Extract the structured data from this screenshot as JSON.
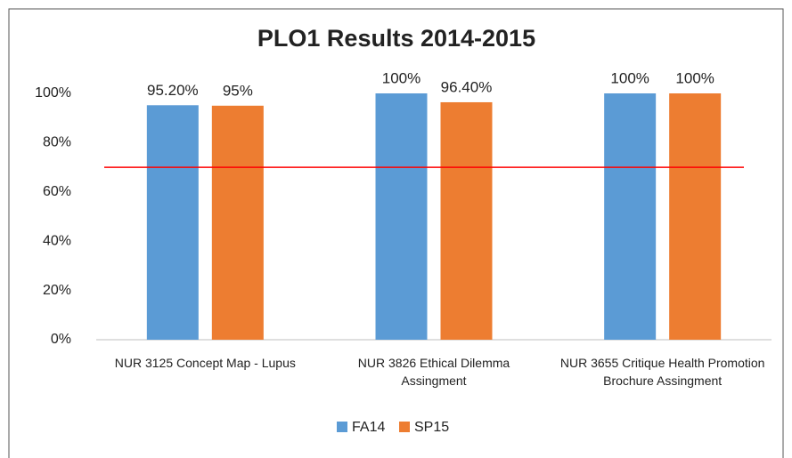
{
  "chart_data": {
    "type": "bar",
    "title": "PLO1 Results 2014-2015",
    "categories": [
      "NUR 3125 Concept Map - Lupus",
      "NUR 3826  Ethical Dilemma Assingment",
      "NUR 3655 Critique Health Promotion Brochure Assingment"
    ],
    "series": [
      {
        "name": "FA14",
        "color": "#5b9bd5",
        "values": [
          95.2,
          100,
          100
        ],
        "value_labels": [
          "95.20%",
          "100%",
          "100%"
        ]
      },
      {
        "name": "SP15",
        "color": "#ed7d31",
        "values": [
          95,
          96.4,
          100
        ],
        "value_labels": [
          "95%",
          "96.40%",
          "100%"
        ]
      }
    ],
    "ylim": [
      0,
      100
    ],
    "yticks": [
      {
        "value": 0,
        "label": "0%"
      },
      {
        "value": 20,
        "label": "20%"
      },
      {
        "value": 40,
        "label": "40%"
      },
      {
        "value": 60,
        "label": "60%"
      },
      {
        "value": 80,
        "label": "80%"
      },
      {
        "value": 100,
        "label": "100%"
      }
    ],
    "reference_line": 70,
    "reference_color": "#ff0000",
    "grid": false,
    "legend": "bottom"
  }
}
